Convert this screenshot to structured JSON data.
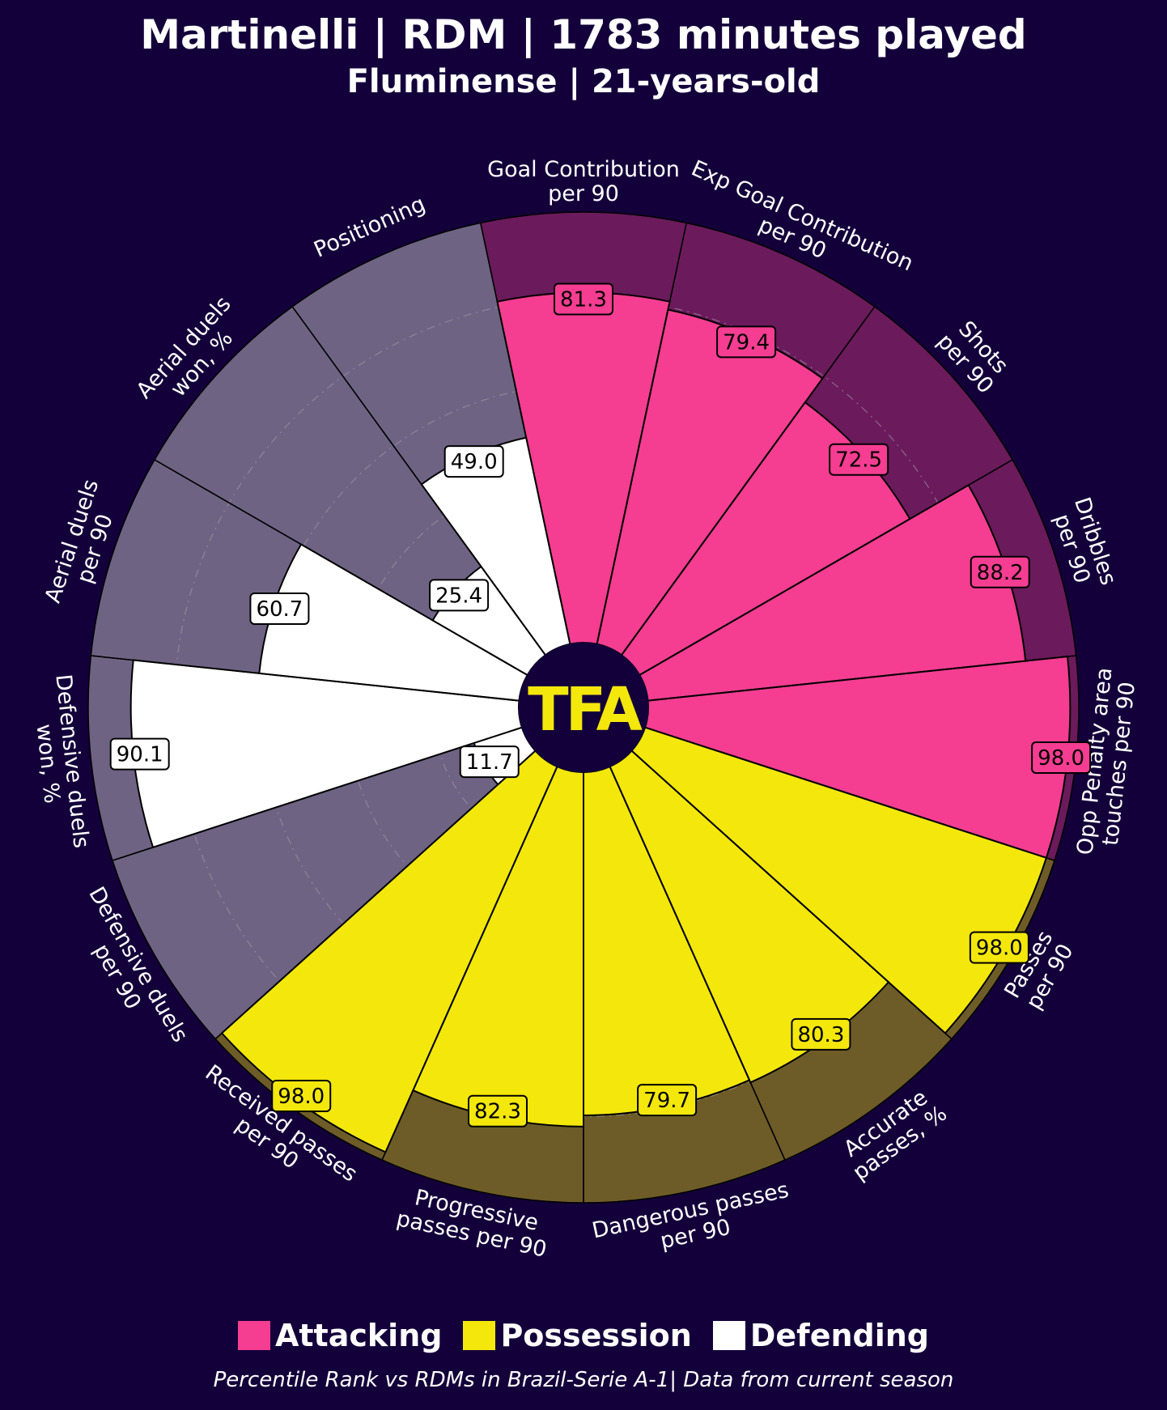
{
  "header": {
    "title": "Martinelli | RDM | 1783 minutes played",
    "subtitle": "Fluminense | 21-years-old"
  },
  "logo": {
    "text": "TFA"
  },
  "legend": {
    "attacking": "Attacking",
    "possession": "Possession",
    "defending": "Defending"
  },
  "footnote": "Percentile Rank vs RDMs in Brazil-Serie A-1| Data from current season",
  "colors": {
    "background": "#13003a",
    "attacking": "#f53d92",
    "attacking_bg": "#6b1a5c",
    "possession": "#f4e70b",
    "possession_bg": "#6e5c28",
    "defending": "#ffffff",
    "defending_bg": "#6f6384",
    "logo_text": "#f4e70b"
  },
  "chart_data": {
    "type": "pizza",
    "title": "Martinelli | RDM | 1783 minutes played",
    "subtitle": "Fluminense | 21-years-old",
    "value_range": [
      0,
      100
    ],
    "metrics": [
      {
        "label": [
          "Goal Contribution",
          "per 90"
        ],
        "value": 81.3,
        "category": "Attacking"
      },
      {
        "label": [
          "Exp Goal Contribution",
          "per 90"
        ],
        "value": 79.4,
        "category": "Attacking"
      },
      {
        "label": [
          "Shots",
          "per 90"
        ],
        "value": 72.5,
        "category": "Attacking"
      },
      {
        "label": [
          "Dribbles",
          "per 90"
        ],
        "value": 88.2,
        "category": "Attacking"
      },
      {
        "label": [
          "Opp Penalty area",
          "touches per 90"
        ],
        "value": 98.0,
        "category": "Attacking"
      },
      {
        "label": [
          "Passes",
          "per 90"
        ],
        "value": 98.0,
        "category": "Possession"
      },
      {
        "label": [
          "Accurate",
          "passes, %"
        ],
        "value": 80.3,
        "category": "Possession"
      },
      {
        "label": [
          "Dangerous passes",
          "per 90"
        ],
        "value": 79.7,
        "category": "Possession"
      },
      {
        "label": [
          "Progressive",
          "passes per 90"
        ],
        "value": 82.3,
        "category": "Possession"
      },
      {
        "label": [
          "Received passes",
          "per 90"
        ],
        "value": 98.0,
        "category": "Possession"
      },
      {
        "label": [
          "Defensive duels",
          "per 90"
        ],
        "value": 11.7,
        "category": "Defending"
      },
      {
        "label": [
          "Defensive duels",
          "won, %"
        ],
        "value": 90.1,
        "category": "Defending"
      },
      {
        "label": [
          "Aerial duels",
          "per 90"
        ],
        "value": 60.7,
        "category": "Defending"
      },
      {
        "label": [
          "Aerial duels",
          "won, %"
        ],
        "value": 25.4,
        "category": "Defending"
      },
      {
        "label": [
          "Positioning"
        ],
        "value": 49.0,
        "category": "Defending"
      }
    ]
  }
}
